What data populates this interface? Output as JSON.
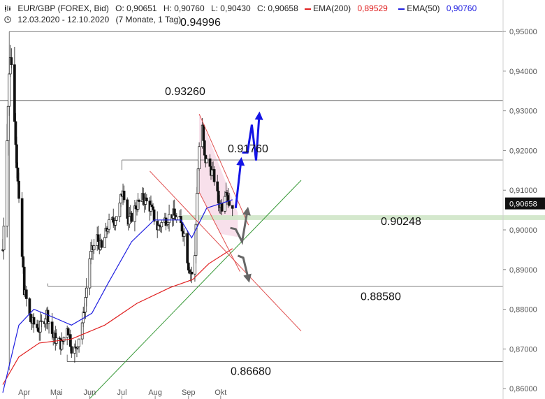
{
  "header": {
    "symbol": "EUR/GBP (FOREX, Bid)",
    "open": "O: 0,90651",
    "high": "H: 0,90760",
    "low": "L: 0,90430",
    "close": "C: 0,90658",
    "ema200": "EMA(200)",
    "ema200_value": "0,89529",
    "ema50": "EMA(50)",
    "ema50_value": "0,90760",
    "range": "12.03.2020 - 12.10.2020",
    "period": "(7 Monate, 1 Tag)"
  },
  "colors": {
    "ema200": "#e02020",
    "ema50": "#2020e0",
    "trend": "#3a9a3a",
    "channel": "#e05050",
    "scenario_up": "#1515e6",
    "scenario_alt": "#666666",
    "price_tag": "#111111",
    "support_band": "#cfe6c8",
    "pink_zone": "#f7dbe8"
  },
  "chart_data": {
    "type": "candlestick",
    "x_labels": [
      "Apr",
      "Mai",
      "Jun",
      "Jul",
      "Aug",
      "Sep",
      "Okt"
    ],
    "y_ticks": [
      "0,95000",
      "0,94000",
      "0,93000",
      "0,92000",
      "0,91000",
      "0,90000",
      "0,89000",
      "0,88000",
      "0,87000",
      "0,86000"
    ],
    "y_tick_values": [
      0.95,
      0.94,
      0.93,
      0.92,
      0.91,
      0.9,
      0.89,
      0.88,
      0.87,
      0.86
    ],
    "ylim": [
      0.8572,
      0.9521
    ],
    "last_price_label": "0,90658",
    "last_price": 0.90658,
    "levels": [
      {
        "label": "0.94996",
        "value": 0.94996
      },
      {
        "label": "0.93260",
        "value": 0.9326
      },
      {
        "label": "0.91760",
        "value": 0.9176
      },
      {
        "label": "0.90248",
        "value": 0.90248
      },
      {
        "label": "0.88580",
        "value": 0.8858
      },
      {
        "label": "0.86680",
        "value": 0.8668
      }
    ],
    "ohlc_anchor_path": [
      [
        "2020-03-12",
        0.895
      ],
      [
        "2020-03-16",
        0.925
      ],
      [
        "2020-03-19",
        0.945
      ],
      [
        "2020-03-23",
        0.93
      ],
      [
        "2020-03-27",
        0.905
      ],
      [
        "2020-04-01",
        0.885
      ],
      [
        "2020-04-07",
        0.877
      ],
      [
        "2020-04-15",
        0.875
      ],
      [
        "2020-04-22",
        0.879
      ],
      [
        "2020-04-28",
        0.873
      ],
      [
        "2020-05-06",
        0.871
      ],
      [
        "2020-05-11",
        0.876
      ],
      [
        "2020-05-15",
        0.8705
      ],
      [
        "2020-05-19",
        0.8695
      ],
      [
        "2020-05-26",
        0.878
      ],
      [
        "2020-06-01",
        0.893
      ],
      [
        "2020-06-08",
        0.898
      ],
      [
        "2020-06-12",
        0.895
      ],
      [
        "2020-06-18",
        0.901
      ],
      [
        "2020-06-24",
        0.9025
      ],
      [
        "2020-06-29",
        0.906
      ],
      [
        "2020-07-02",
        0.911
      ],
      [
        "2020-07-07",
        0.9015
      ],
      [
        "2020-07-14",
        0.906
      ],
      [
        "2020-07-21",
        0.908
      ],
      [
        "2020-07-28",
        0.9055
      ],
      [
        "2020-08-03",
        0.9005
      ],
      [
        "2020-08-10",
        0.9025
      ],
      [
        "2020-08-17",
        0.904
      ],
      [
        "2020-08-24",
        0.902
      ],
      [
        "2020-08-28",
        0.899
      ],
      [
        "2020-09-01",
        0.891
      ],
      [
        "2020-09-04",
        0.889
      ],
      [
        "2020-09-07",
        0.893
      ],
      [
        "2020-09-09",
        0.91
      ],
      [
        "2020-09-11",
        0.921
      ],
      [
        "2020-09-14",
        0.9255
      ],
      [
        "2020-09-16",
        0.918
      ],
      [
        "2020-09-21",
        0.916
      ],
      [
        "2020-09-25",
        0.913
      ],
      [
        "2020-09-29",
        0.907
      ],
      [
        "2020-10-02",
        0.906
      ],
      [
        "2020-10-06",
        0.911
      ],
      [
        "2020-10-09",
        0.9065
      ],
      [
        "2020-10-12",
        0.90658
      ]
    ],
    "ema200_path": [
      [
        "2020-03-12",
        0.861
      ],
      [
        "2020-03-27",
        0.868
      ],
      [
        "2020-04-15",
        0.8715
      ],
      [
        "2020-05-15",
        0.8725
      ],
      [
        "2020-06-15",
        0.876
      ],
      [
        "2020-07-15",
        0.8815
      ],
      [
        "2020-08-15",
        0.8855
      ],
      [
        "2020-09-05",
        0.8875
      ],
      [
        "2020-09-20",
        0.8915
      ],
      [
        "2020-10-12",
        0.8953
      ]
    ],
    "ema50_path": [
      [
        "2020-03-12",
        0.859
      ],
      [
        "2020-03-27",
        0.876
      ],
      [
        "2020-04-10",
        0.88
      ],
      [
        "2020-04-28",
        0.878
      ],
      [
        "2020-05-15",
        0.876
      ],
      [
        "2020-06-03",
        0.879
      ],
      [
        "2020-06-18",
        0.8865
      ],
      [
        "2020-07-10",
        0.897
      ],
      [
        "2020-07-31",
        0.9025
      ],
      [
        "2020-08-25",
        0.9025
      ],
      [
        "2020-09-04",
        0.898
      ],
      [
        "2020-09-18",
        0.9055
      ],
      [
        "2020-10-12",
        0.9076
      ]
    ],
    "trendlines": [
      {
        "name": "uptrend",
        "from": [
          "2020-06-01",
          0.8575
        ],
        "to": [
          "2020-12-15",
          0.9125
        ]
      },
      {
        "name": "channel-outer",
        "from": [
          "2020-07-27",
          0.9148
        ],
        "to": [
          "2020-12-15",
          0.8745
        ]
      },
      {
        "name": "channel-upper",
        "from": [
          "2020-09-11",
          0.9292
        ],
        "to": [
          "2020-10-27",
          0.9012
        ]
      },
      {
        "name": "channel-lower",
        "from": [
          "2020-09-11",
          0.9095
        ],
        "to": [
          "2020-10-19",
          0.8895
        ]
      }
    ],
    "scenario_paths": [
      {
        "name": "bullish",
        "points": [
          [
            "2020-10-15",
            0.9055
          ],
          [
            "2020-10-20",
            0.9175
          ]
        ]
      },
      {
        "name": "bullish-continuation",
        "points": [
          [
            "2020-10-21",
            0.9195
          ],
          [
            "2020-10-26",
            0.9195
          ],
          [
            "2020-10-30",
            0.9265
          ],
          [
            "2020-11-03",
            0.9175
          ],
          [
            "2020-11-06",
            0.929
          ]
        ]
      },
      {
        "name": "alternative",
        "points": [
          [
            "2020-10-10",
            0.9005
          ],
          [
            "2020-10-15",
            0.9002
          ],
          [
            "2020-10-21",
            0.897
          ],
          [
            "2020-10-26",
            0.905
          ]
        ]
      },
      {
        "name": "bearish",
        "points": [
          [
            "2020-10-17",
            0.8935
          ],
          [
            "2020-10-22",
            0.893
          ],
          [
            "2020-10-27",
            0.8875
          ]
        ]
      }
    ],
    "support_zone": [
      0.90248,
      0.9037
    ],
    "legend_placement": "top-left",
    "grid": false
  }
}
